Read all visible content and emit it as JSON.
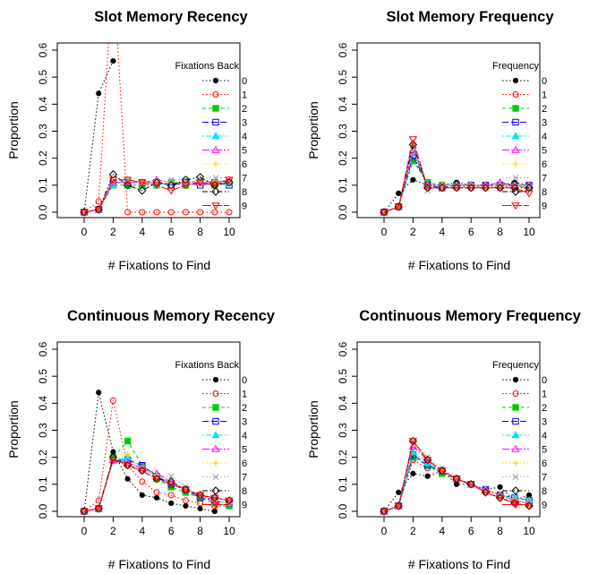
{
  "chart_data": [
    {
      "type": "line",
      "title": "Slot Memory Recency",
      "xlabel": "# Fixations to Find",
      "ylabel": "Proportion",
      "xlim": [
        0,
        10
      ],
      "ylim": [
        0,
        0.6
      ],
      "x_ticks": [
        0,
        2,
        4,
        6,
        8,
        10
      ],
      "y_ticks": [
        0.0,
        0.1,
        0.2,
        0.3,
        0.4,
        0.5,
        0.6
      ],
      "legend_title": "Fixations Back",
      "legend_position": "top-right",
      "x": [
        0,
        1,
        2,
        3,
        4,
        5,
        6,
        7,
        8,
        9,
        10
      ],
      "series": [
        {
          "name": "0",
          "color": "#000000",
          "marker": "dot",
          "values": [
            0,
            0.44,
            0.56,
            null,
            null,
            null,
            null,
            null,
            null,
            null,
            null
          ]
        },
        {
          "name": "1",
          "color": "#ff0000",
          "marker": "circle",
          "values": [
            0,
            0.04,
            0.9,
            0,
            0,
            0,
            0,
            0,
            0,
            0,
            0
          ]
        },
        {
          "name": "2",
          "color": "#00cc00",
          "marker": "square-filled",
          "values": [
            0,
            0.01,
            0.1,
            0.1,
            0.1,
            0.1,
            0.11,
            0.1,
            0.11,
            0.1,
            0.11
          ]
        },
        {
          "name": "3",
          "color": "#0000ff",
          "marker": "square",
          "values": [
            0,
            0.01,
            0.11,
            0.11,
            0.11,
            0.11,
            0.1,
            0.11,
            0.1,
            0.11,
            0.1
          ]
        },
        {
          "name": "4",
          "color": "#00e5ee",
          "marker": "triangle-filled",
          "values": [
            0,
            0.01,
            0.1,
            0.12,
            0.11,
            0.1,
            0.11,
            0.11,
            0.12,
            0.11,
            0.11
          ]
        },
        {
          "name": "5",
          "color": "#ff00ff",
          "marker": "triangle",
          "values": [
            0,
            0.01,
            0.11,
            0.11,
            0.11,
            0.12,
            0.11,
            0.11,
            0.11,
            0.11,
            0.12
          ]
        },
        {
          "name": "6",
          "color": "#ffd700",
          "marker": "plus",
          "values": [
            0,
            0.01,
            0.12,
            0.12,
            0.11,
            0.11,
            0.11,
            0.11,
            0.12,
            0.11,
            0.11
          ]
        },
        {
          "name": "7",
          "color": "#aaaaaa",
          "marker": "cross",
          "values": [
            0,
            0.01,
            0.11,
            0.11,
            0.11,
            0.11,
            0.12,
            0.12,
            0.11,
            0.11,
            0.12
          ]
        },
        {
          "name": "8",
          "color": "#000000",
          "marker": "diamond",
          "values": [
            0,
            0.01,
            0.14,
            0.1,
            0.08,
            0.11,
            0.1,
            0.12,
            0.13,
            0.1,
            0.11
          ]
        },
        {
          "name": "9",
          "color": "#ff0000",
          "marker": "triangle-down",
          "values": [
            0,
            0.01,
            0.12,
            0.12,
            0.11,
            0.1,
            0.08,
            0.1,
            0.11,
            0.1,
            0.12
          ]
        }
      ]
    },
    {
      "type": "line",
      "title": "Slot Memory Frequency",
      "xlabel": "# Fixations to Find",
      "ylabel": "Proportion",
      "xlim": [
        0,
        10
      ],
      "ylim": [
        0,
        0.6
      ],
      "x_ticks": [
        0,
        2,
        4,
        6,
        8,
        10
      ],
      "y_ticks": [
        0.0,
        0.1,
        0.2,
        0.3,
        0.4,
        0.5,
        0.6
      ],
      "legend_title": "Frequency",
      "legend_position": "top-right",
      "x": [
        0,
        1,
        2,
        3,
        4,
        5,
        6,
        7,
        8,
        9,
        10
      ],
      "series": [
        {
          "name": "0",
          "color": "#000000",
          "marker": "dot",
          "values": [
            0,
            0.07,
            0.12,
            0.1,
            0.1,
            0.11,
            0.1,
            0.1,
            0.1,
            0.11,
            0.1
          ]
        },
        {
          "name": "1",
          "color": "#ff0000",
          "marker": "circle",
          "values": [
            0,
            0.02,
            0.2,
            0.1,
            0.1,
            0.1,
            0.09,
            0.1,
            0.09,
            0.1,
            0.09
          ]
        },
        {
          "name": "2",
          "color": "#00cc00",
          "marker": "square-filled",
          "values": [
            0,
            0.02,
            0.19,
            0.11,
            0.1,
            0.1,
            0.1,
            0.1,
            0.1,
            0.1,
            0.09
          ]
        },
        {
          "name": "3",
          "color": "#0000ff",
          "marker": "square",
          "values": [
            0,
            0.02,
            0.21,
            0.1,
            0.09,
            0.1,
            0.1,
            0.1,
            0.1,
            0.1,
            0.1
          ]
        },
        {
          "name": "4",
          "color": "#00e5ee",
          "marker": "triangle-filled",
          "values": [
            0,
            0.02,
            0.22,
            0.1,
            0.1,
            0.1,
            0.1,
            0.1,
            0.1,
            0.1,
            0.1
          ]
        },
        {
          "name": "5",
          "color": "#ff00ff",
          "marker": "triangle",
          "values": [
            0,
            0.02,
            0.23,
            0.1,
            0.1,
            0.1,
            0.1,
            0.1,
            0.11,
            0.1,
            0.1
          ]
        },
        {
          "name": "6",
          "color": "#ffd700",
          "marker": "plus",
          "values": [
            0,
            0.02,
            0.24,
            0.1,
            0.1,
            0.1,
            0.1,
            0.1,
            0.1,
            0.1,
            0.1
          ]
        },
        {
          "name": "7",
          "color": "#aaaaaa",
          "marker": "cross",
          "values": [
            0,
            0.02,
            0.25,
            0.08,
            0.09,
            0.09,
            0.1,
            0.09,
            0.09,
            0.09,
            0.09
          ]
        },
        {
          "name": "8",
          "color": "#000000",
          "marker": "diamond",
          "values": [
            0,
            0.02,
            0.25,
            0.09,
            0.09,
            0.09,
            0.09,
            0.09,
            0.09,
            0.09,
            0.09
          ]
        },
        {
          "name": "9",
          "color": "#ff0000",
          "marker": "triangle-down",
          "values": [
            0,
            0.02,
            0.27,
            0.09,
            0.09,
            0.09,
            0.09,
            0.09,
            0.09,
            0.09,
            0.07
          ]
        }
      ]
    },
    {
      "type": "line",
      "title": "Continuous Memory Recency",
      "xlabel": "# Fixations to Find",
      "ylabel": "Proportion",
      "xlim": [
        0,
        10
      ],
      "ylim": [
        0,
        0.6
      ],
      "x_ticks": [
        0,
        2,
        4,
        6,
        8,
        10
      ],
      "y_ticks": [
        0.0,
        0.1,
        0.2,
        0.3,
        0.4,
        0.5,
        0.6
      ],
      "legend_title": "Fixations Back",
      "legend_position": "top-right",
      "x": [
        0,
        1,
        2,
        3,
        4,
        5,
        6,
        7,
        8,
        9,
        10
      ],
      "series": [
        {
          "name": "0",
          "color": "#000000",
          "marker": "dot",
          "values": [
            0,
            0.44,
            0.22,
            0.12,
            0.06,
            0.05,
            0.03,
            0.02,
            0.01,
            0.0,
            null
          ]
        },
        {
          "name": "1",
          "color": "#ff0000",
          "marker": "circle",
          "values": [
            0,
            0.04,
            0.41,
            0.17,
            0.11,
            0.07,
            0.06,
            0.04,
            0.03,
            0.02,
            0.02
          ]
        },
        {
          "name": "2",
          "color": "#00cc00",
          "marker": "square-filled",
          "values": [
            0,
            0.01,
            0.2,
            0.26,
            0.17,
            0.12,
            0.09,
            0.07,
            0.05,
            0.03,
            0.02
          ]
        },
        {
          "name": "3",
          "color": "#0000ff",
          "marker": "square",
          "values": [
            0,
            0.01,
            0.19,
            0.19,
            0.17,
            0.13,
            0.1,
            0.08,
            0.05,
            0.04,
            0.03
          ]
        },
        {
          "name": "4",
          "color": "#00e5ee",
          "marker": "triangle-filled",
          "values": [
            0,
            0.01,
            0.19,
            0.2,
            0.16,
            0.13,
            0.11,
            0.08,
            0.06,
            0.04,
            0.03
          ]
        },
        {
          "name": "5",
          "color": "#ff00ff",
          "marker": "triangle",
          "values": [
            0,
            0.01,
            0.19,
            0.18,
            0.16,
            0.14,
            0.11,
            0.08,
            0.06,
            0.04,
            0.03
          ]
        },
        {
          "name": "6",
          "color": "#ffd700",
          "marker": "plus",
          "values": [
            0,
            0.01,
            0.19,
            0.21,
            0.16,
            0.13,
            0.11,
            0.08,
            0.06,
            0.04,
            0.03
          ]
        },
        {
          "name": "7",
          "color": "#aaaaaa",
          "marker": "cross",
          "values": [
            0,
            0.01,
            0.19,
            0.17,
            0.16,
            0.13,
            0.13,
            0.09,
            0.06,
            0.05,
            0.04
          ]
        },
        {
          "name": "8",
          "color": "#000000",
          "marker": "diamond",
          "values": [
            0,
            0.01,
            0.2,
            0.17,
            0.15,
            0.12,
            0.11,
            0.08,
            0.06,
            0.05,
            0.04
          ]
        },
        {
          "name": "9",
          "color": "#ff0000",
          "marker": "triangle-down",
          "values": [
            0,
            0.01,
            0.19,
            0.17,
            0.15,
            0.12,
            0.1,
            0.08,
            0.06,
            0.05,
            0.04
          ]
        }
      ]
    },
    {
      "type": "line",
      "title": "Continuous Memory Frequency",
      "xlabel": "# Fixations to Find",
      "ylabel": "Proportion",
      "xlim": [
        0,
        10
      ],
      "ylim": [
        0,
        0.6
      ],
      "x_ticks": [
        0,
        2,
        4,
        6,
        8,
        10
      ],
      "y_ticks": [
        0.0,
        0.1,
        0.2,
        0.3,
        0.4,
        0.5,
        0.6
      ],
      "legend_title": "Frequency",
      "legend_position": "top-right",
      "x": [
        0,
        1,
        2,
        3,
        4,
        5,
        6,
        7,
        8,
        9,
        10
      ],
      "series": [
        {
          "name": "0",
          "color": "#000000",
          "marker": "dot",
          "values": [
            0,
            0.07,
            0.14,
            0.13,
            0.15,
            0.1,
            0.1,
            0.08,
            0.09,
            0.04,
            0.06
          ]
        },
        {
          "name": "1",
          "color": "#ff0000",
          "marker": "circle",
          "values": [
            0,
            0.02,
            0.19,
            0.16,
            0.15,
            0.12,
            0.1,
            0.08,
            0.06,
            0.04,
            0.03
          ]
        },
        {
          "name": "2",
          "color": "#00cc00",
          "marker": "square-filled",
          "values": [
            0,
            0.02,
            0.2,
            0.17,
            0.14,
            0.12,
            0.1,
            0.08,
            0.06,
            0.04,
            0.03
          ]
        },
        {
          "name": "3",
          "color": "#0000ff",
          "marker": "square",
          "values": [
            0,
            0.02,
            0.21,
            0.17,
            0.15,
            0.12,
            0.1,
            0.08,
            0.06,
            0.05,
            0.04
          ]
        },
        {
          "name": "4",
          "color": "#00e5ee",
          "marker": "triangle-filled",
          "values": [
            0,
            0.02,
            0.22,
            0.18,
            0.15,
            0.12,
            0.1,
            0.08,
            0.06,
            0.05,
            0.04
          ]
        },
        {
          "name": "5",
          "color": "#ff00ff",
          "marker": "triangle",
          "values": [
            0,
            0.02,
            0.24,
            0.19,
            0.15,
            0.12,
            0.1,
            0.08,
            0.06,
            0.04,
            0.03
          ]
        },
        {
          "name": "6",
          "color": "#ffd700",
          "marker": "plus",
          "values": [
            0,
            0.02,
            0.25,
            0.2,
            0.15,
            0.12,
            0.1,
            0.08,
            0.06,
            0.04,
            0.03
          ]
        },
        {
          "name": "7",
          "color": "#aaaaaa",
          "marker": "cross",
          "values": [
            0,
            0.02,
            0.26,
            0.2,
            0.16,
            0.12,
            0.1,
            0.07,
            0.05,
            0.04,
            0.03
          ]
        },
        {
          "name": "8",
          "color": "#000000",
          "marker": "diamond",
          "values": [
            0,
            0.02,
            0.26,
            0.19,
            0.15,
            0.12,
            0.1,
            0.07,
            0.05,
            0.03,
            0.02
          ]
        },
        {
          "name": "9",
          "color": "#ff0000",
          "marker": "triangle-down",
          "values": [
            0,
            0.02,
            0.26,
            0.19,
            0.15,
            0.12,
            0.1,
            0.07,
            0.05,
            0.03,
            0.02
          ]
        }
      ]
    }
  ]
}
